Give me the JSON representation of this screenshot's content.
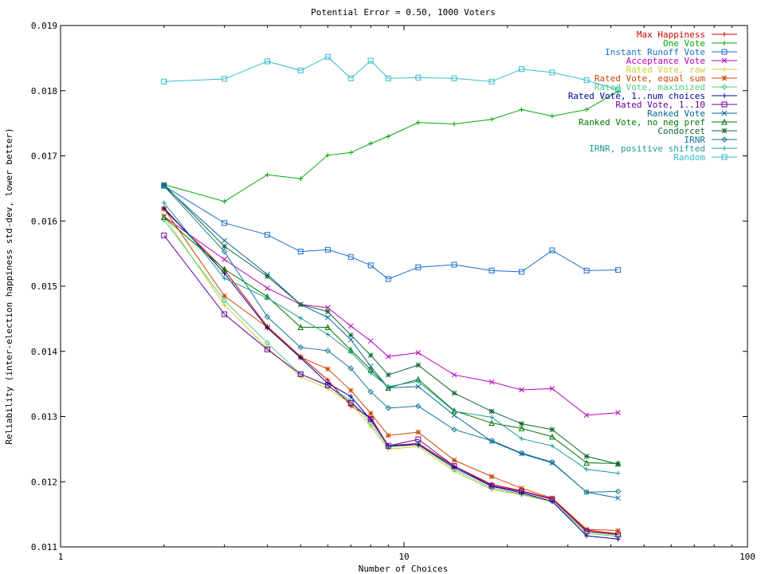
{
  "chart_data": {
    "type": "line",
    "title": "Potential Error = 0.50, 1000 Voters",
    "xlabel": "Number of Choices",
    "ylabel": "Reliability (inter-election happiness std-dev, lower better)",
    "x_scale": "log",
    "xlim": [
      1,
      100
    ],
    "ylim": [
      0.011,
      0.019
    ],
    "x_ticks": [
      1,
      10,
      100
    ],
    "x_tick_labels": [
      "1",
      "10",
      "100"
    ],
    "y_ticks": [
      0.011,
      0.012,
      0.013,
      0.014,
      0.015,
      0.016,
      0.017,
      0.018,
      0.019
    ],
    "y_tick_labels": [
      "0.011",
      "0.012",
      "0.013",
      "0.014",
      "0.015",
      "0.016",
      "0.017",
      "0.018",
      "0.019"
    ],
    "grid": false,
    "legend_position": "top-right",
    "x": [
      2,
      3,
      4,
      5,
      6,
      7,
      8,
      9,
      11,
      14,
      18,
      22,
      27,
      34,
      42
    ],
    "series": [
      {
        "name": "Max Happiness",
        "color": "#cc0000",
        "marker": "plus",
        "values": [
          0.01618,
          0.01525,
          0.01438,
          0.01392,
          0.01356,
          0.01316,
          0.01299,
          0.01255,
          0.01259,
          0.01224,
          0.01196,
          0.01186,
          0.01174,
          0.01126,
          0.0112
        ]
      },
      {
        "name": "One Vote",
        "color": "#00aa00",
        "marker": "plus",
        "values": [
          0.01656,
          0.0163,
          0.01671,
          0.01665,
          0.01701,
          0.01705,
          0.01719,
          0.0173,
          0.01751,
          0.01749,
          0.01756,
          0.01771,
          0.01761,
          0.01771,
          0.01799
        ]
      },
      {
        "name": "Instant Runoff Vote",
        "color": "#1a6ecc",
        "marker": "square",
        "values": [
          0.01654,
          0.01597,
          0.01579,
          0.01553,
          0.01556,
          0.01545,
          0.01532,
          0.01511,
          0.01529,
          0.01533,
          0.01524,
          0.01522,
          0.01555,
          0.01524,
          0.01525
        ]
      },
      {
        "name": "Acceptance Vote",
        "color": "#bb00bb",
        "marker": "x",
        "values": [
          0.01607,
          0.01541,
          0.01497,
          0.01472,
          0.01467,
          0.01439,
          0.01416,
          0.01392,
          0.01398,
          0.01364,
          0.01353,
          0.01341,
          0.01343,
          0.01302,
          0.01306
        ]
      },
      {
        "name": "Rated Vote, raw",
        "color": "#cccc33",
        "marker": "plus",
        "values": [
          0.01608,
          0.01471,
          0.01405,
          0.01361,
          0.01343,
          0.0132,
          0.01285,
          0.0125,
          0.01254,
          0.01216,
          0.01188,
          0.0118,
          0.01169,
          0.01123,
          0.01118
        ]
      },
      {
        "name": "Rated Vote, equal sum",
        "color": "#cc4400",
        "marker": "star",
        "values": [
          0.01619,
          0.01485,
          0.01437,
          0.01391,
          0.01373,
          0.0134,
          0.01305,
          0.01271,
          0.01276,
          0.01233,
          0.01208,
          0.0119,
          0.01175,
          0.01127,
          0.01125
        ]
      },
      {
        "name": "Rated Vote, maximized",
        "color": "#55cc88",
        "marker": "diamond",
        "values": [
          0.01602,
          0.01478,
          0.01413,
          0.01365,
          0.01347,
          0.01325,
          0.0129,
          0.01253,
          0.01257,
          0.01219,
          0.0119,
          0.01181,
          0.0117,
          0.01121,
          0.01116
        ]
      },
      {
        "name": "Rated Vote, 1..num choices",
        "color": "#000099",
        "marker": "plus",
        "values": [
          0.0162,
          0.0152,
          0.01436,
          0.0139,
          0.01351,
          0.01331,
          0.01295,
          0.01255,
          0.01257,
          0.01222,
          0.01193,
          0.01183,
          0.0117,
          0.01117,
          0.01112
        ]
      },
      {
        "name": "Rated Vote, 1..10",
        "color": "#660099",
        "marker": "square",
        "values": [
          0.01578,
          0.01457,
          0.01403,
          0.01365,
          0.01348,
          0.01321,
          0.01296,
          0.01255,
          0.01265,
          0.01224,
          0.01194,
          0.01185,
          0.01173,
          0.01124,
          0.01119
        ]
      },
      {
        "name": "Ranked Vote",
        "color": "#006699",
        "marker": "x",
        "values": [
          0.01654,
          0.0157,
          0.01518,
          0.01472,
          0.01452,
          0.01418,
          0.01377,
          0.01344,
          0.01346,
          0.01302,
          0.01262,
          0.01243,
          0.01229,
          0.01184,
          0.01175
        ]
      },
      {
        "name": "Ranked Vote, no neg pref",
        "color": "#007700",
        "marker": "triangle",
        "values": [
          0.01606,
          0.01526,
          0.01484,
          0.01437,
          0.01437,
          0.01402,
          0.01372,
          0.01344,
          0.01357,
          0.01309,
          0.0129,
          0.01282,
          0.01269,
          0.01229,
          0.01228
        ]
      },
      {
        "name": "Condorcet",
        "color": "#116633",
        "marker": "star",
        "values": [
          0.01656,
          0.01561,
          0.01515,
          0.01472,
          0.01461,
          0.01425,
          0.01394,
          0.01364,
          0.01379,
          0.01336,
          0.01308,
          0.01289,
          0.0128,
          0.01239,
          0.01227
        ]
      },
      {
        "name": "IRNR",
        "color": "#117799",
        "marker": "diamond",
        "values": [
          0.01654,
          0.01553,
          0.01453,
          0.01406,
          0.01401,
          0.01374,
          0.01338,
          0.01313,
          0.01316,
          0.0128,
          0.01263,
          0.01244,
          0.0123,
          0.01184,
          0.01185
        ]
      },
      {
        "name": "IRNR, positive shifted",
        "color": "#229999",
        "marker": "plus",
        "values": [
          0.01628,
          0.01512,
          0.01482,
          0.01451,
          0.01426,
          0.01399,
          0.01367,
          0.01346,
          0.01354,
          0.01308,
          0.01299,
          0.01266,
          0.01255,
          0.01219,
          0.01213
        ]
      },
      {
        "name": "Random",
        "color": "#33bbcc",
        "marker": "square",
        "values": [
          0.01814,
          0.01818,
          0.01845,
          0.01831,
          0.01852,
          0.01819,
          0.01846,
          0.01819,
          0.0182,
          0.01819,
          0.01814,
          0.01833,
          0.01828,
          0.01816,
          0.01801
        ]
      }
    ]
  }
}
